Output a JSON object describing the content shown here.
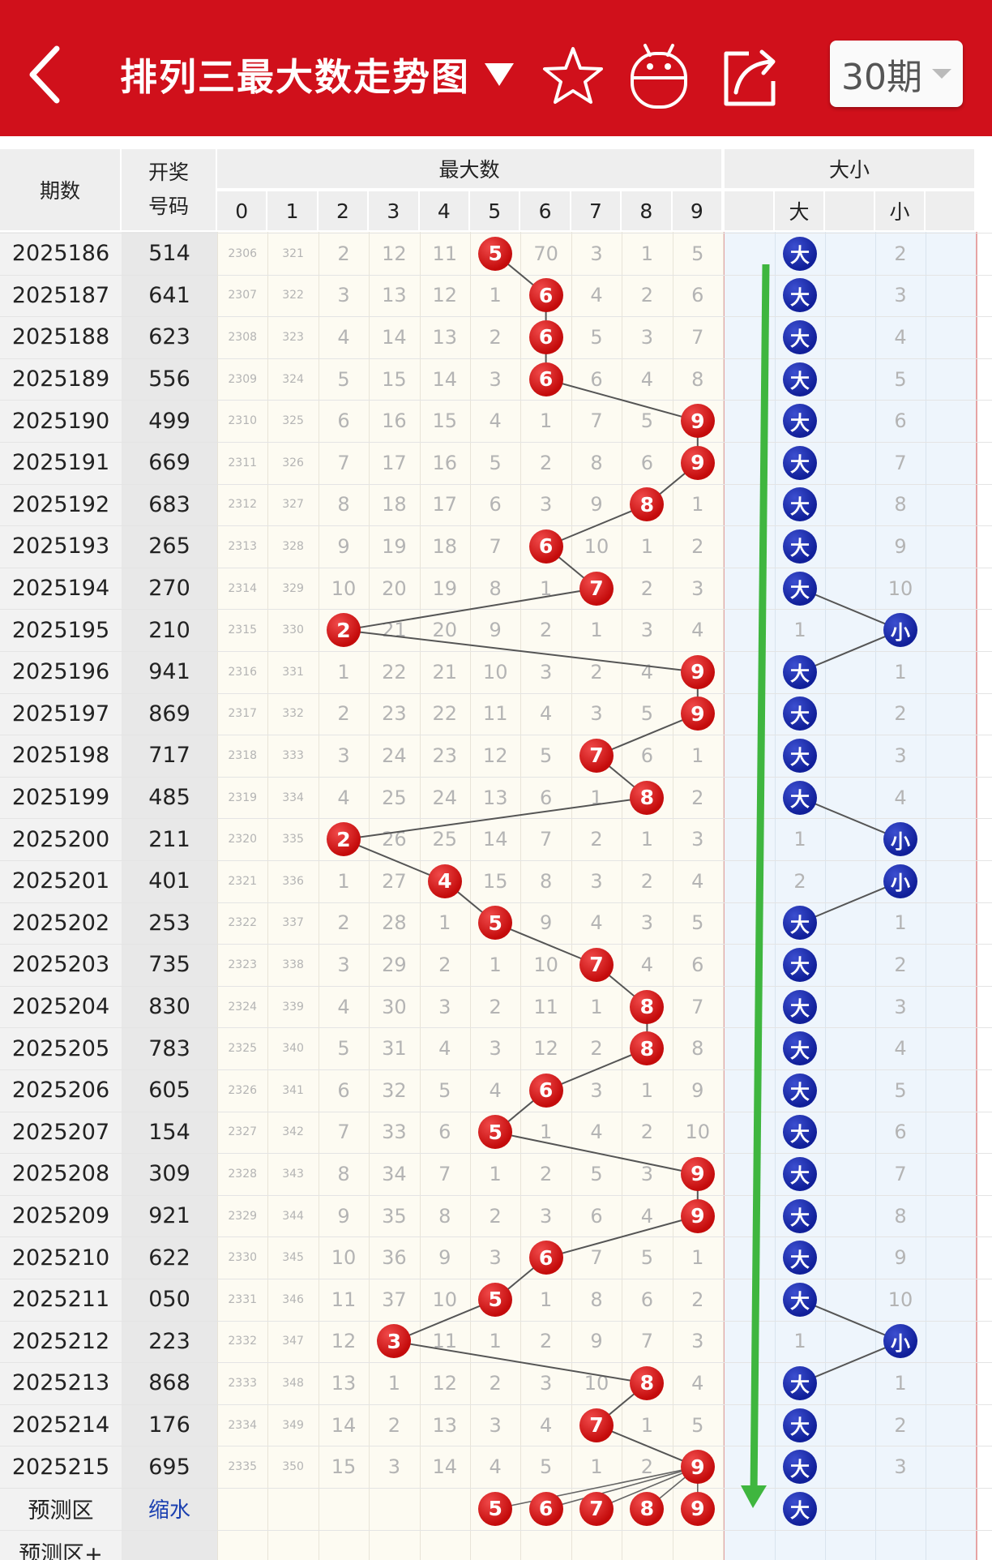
{
  "header": {
    "title": "排列三最大数走势图",
    "period_label": "30期",
    "icons": [
      "back-arrow-icon",
      "star-icon",
      "robot-icon",
      "share-icon"
    ],
    "bg_color": "#d0101b"
  },
  "columns": {
    "issue_label": "期数",
    "draw_label_1": "开奖",
    "draw_label_2": "号码",
    "max_group_label": "最大数",
    "digits": [
      "0",
      "1",
      "2",
      "3",
      "4",
      "5",
      "6",
      "7",
      "8",
      "9"
    ],
    "size_group_label": "大小",
    "big_label": "大",
    "small_label": "小"
  },
  "rows": [
    {
      "issue": "2025186",
      "draw": "514",
      "max": 5,
      "miss": [
        "2306",
        "321",
        "2",
        "12",
        "11",
        "",
        "70",
        "3",
        "1",
        "5"
      ],
      "size": "大",
      "big_miss": "",
      "small_miss": "2"
    },
    {
      "issue": "2025187",
      "draw": "641",
      "max": 6,
      "miss": [
        "2307",
        "322",
        "3",
        "13",
        "12",
        "1",
        "",
        "4",
        "2",
        "6"
      ],
      "size": "大",
      "big_miss": "",
      "small_miss": "3"
    },
    {
      "issue": "2025188",
      "draw": "623",
      "max": 6,
      "miss": [
        "2308",
        "323",
        "4",
        "14",
        "13",
        "2",
        "",
        "5",
        "3",
        "7"
      ],
      "size": "大",
      "big_miss": "",
      "small_miss": "4"
    },
    {
      "issue": "2025189",
      "draw": "556",
      "max": 6,
      "miss": [
        "2309",
        "324",
        "5",
        "15",
        "14",
        "3",
        "",
        "6",
        "4",
        "8"
      ],
      "size": "大",
      "big_miss": "",
      "small_miss": "5"
    },
    {
      "issue": "2025190",
      "draw": "499",
      "max": 9,
      "miss": [
        "2310",
        "325",
        "6",
        "16",
        "15",
        "4",
        "1",
        "7",
        "5",
        ""
      ],
      "size": "大",
      "big_miss": "",
      "small_miss": "6"
    },
    {
      "issue": "2025191",
      "draw": "669",
      "max": 9,
      "miss": [
        "2311",
        "326",
        "7",
        "17",
        "16",
        "5",
        "2",
        "8",
        "6",
        ""
      ],
      "size": "大",
      "big_miss": "",
      "small_miss": "7"
    },
    {
      "issue": "2025192",
      "draw": "683",
      "max": 8,
      "miss": [
        "2312",
        "327",
        "8",
        "18",
        "17",
        "6",
        "3",
        "9",
        "",
        "1"
      ],
      "size": "大",
      "big_miss": "",
      "small_miss": "8"
    },
    {
      "issue": "2025193",
      "draw": "265",
      "max": 6,
      "miss": [
        "2313",
        "328",
        "9",
        "19",
        "18",
        "7",
        "",
        "10",
        "1",
        "2"
      ],
      "size": "大",
      "big_miss": "",
      "small_miss": "9"
    },
    {
      "issue": "2025194",
      "draw": "270",
      "max": 7,
      "miss": [
        "2314",
        "329",
        "10",
        "20",
        "19",
        "8",
        "1",
        "",
        "2",
        "3"
      ],
      "size": "大",
      "big_miss": "",
      "small_miss": "10"
    },
    {
      "issue": "2025195",
      "draw": "210",
      "max": 2,
      "miss": [
        "2315",
        "330",
        "",
        "21",
        "20",
        "9",
        "2",
        "1",
        "3",
        "4"
      ],
      "size": "小",
      "big_miss": "1",
      "small_miss": ""
    },
    {
      "issue": "2025196",
      "draw": "941",
      "max": 9,
      "miss": [
        "2316",
        "331",
        "1",
        "22",
        "21",
        "10",
        "3",
        "2",
        "4",
        ""
      ],
      "size": "大",
      "big_miss": "",
      "small_miss": "1"
    },
    {
      "issue": "2025197",
      "draw": "869",
      "max": 9,
      "miss": [
        "2317",
        "332",
        "2",
        "23",
        "22",
        "11",
        "4",
        "3",
        "5",
        ""
      ],
      "size": "大",
      "big_miss": "",
      "small_miss": "2"
    },
    {
      "issue": "2025198",
      "draw": "717",
      "max": 7,
      "miss": [
        "2318",
        "333",
        "3",
        "24",
        "23",
        "12",
        "5",
        "",
        "6",
        "1"
      ],
      "size": "大",
      "big_miss": "",
      "small_miss": "3"
    },
    {
      "issue": "2025199",
      "draw": "485",
      "max": 8,
      "miss": [
        "2319",
        "334",
        "4",
        "25",
        "24",
        "13",
        "6",
        "1",
        "",
        "2"
      ],
      "size": "大",
      "big_miss": "",
      "small_miss": "4"
    },
    {
      "issue": "2025200",
      "draw": "211",
      "max": 2,
      "miss": [
        "2320",
        "335",
        "",
        "26",
        "25",
        "14",
        "7",
        "2",
        "1",
        "3"
      ],
      "size": "小",
      "big_miss": "1",
      "small_miss": ""
    },
    {
      "issue": "2025201",
      "draw": "401",
      "max": 4,
      "miss": [
        "2321",
        "336",
        "1",
        "27",
        "",
        "15",
        "8",
        "3",
        "2",
        "4"
      ],
      "size": "小",
      "big_miss": "2",
      "small_miss": ""
    },
    {
      "issue": "2025202",
      "draw": "253",
      "max": 5,
      "miss": [
        "2322",
        "337",
        "2",
        "28",
        "1",
        "",
        "9",
        "4",
        "3",
        "5"
      ],
      "size": "大",
      "big_miss": "",
      "small_miss": "1"
    },
    {
      "issue": "2025203",
      "draw": "735",
      "max": 7,
      "miss": [
        "2323",
        "338",
        "3",
        "29",
        "2",
        "1",
        "10",
        "",
        "4",
        "6"
      ],
      "size": "大",
      "big_miss": "",
      "small_miss": "2"
    },
    {
      "issue": "2025204",
      "draw": "830",
      "max": 8,
      "miss": [
        "2324",
        "339",
        "4",
        "30",
        "3",
        "2",
        "11",
        "1",
        "",
        "7"
      ],
      "size": "大",
      "big_miss": "",
      "small_miss": "3"
    },
    {
      "issue": "2025205",
      "draw": "783",
      "max": 8,
      "miss": [
        "2325",
        "340",
        "5",
        "31",
        "4",
        "3",
        "12",
        "2",
        "",
        "8"
      ],
      "size": "大",
      "big_miss": "",
      "small_miss": "4"
    },
    {
      "issue": "2025206",
      "draw": "605",
      "max": 6,
      "miss": [
        "2326",
        "341",
        "6",
        "32",
        "5",
        "4",
        "",
        "3",
        "1",
        "9"
      ],
      "size": "大",
      "big_miss": "",
      "small_miss": "5"
    },
    {
      "issue": "2025207",
      "draw": "154",
      "max": 5,
      "miss": [
        "2327",
        "342",
        "7",
        "33",
        "6",
        "",
        "1",
        "4",
        "2",
        "10"
      ],
      "size": "大",
      "big_miss": "",
      "small_miss": "6"
    },
    {
      "issue": "2025208",
      "draw": "309",
      "max": 9,
      "miss": [
        "2328",
        "343",
        "8",
        "34",
        "7",
        "1",
        "2",
        "5",
        "3",
        ""
      ],
      "size": "大",
      "big_miss": "",
      "small_miss": "7"
    },
    {
      "issue": "2025209",
      "draw": "921",
      "max": 9,
      "miss": [
        "2329",
        "344",
        "9",
        "35",
        "8",
        "2",
        "3",
        "6",
        "4",
        ""
      ],
      "size": "大",
      "big_miss": "",
      "small_miss": "8"
    },
    {
      "issue": "2025210",
      "draw": "622",
      "max": 6,
      "miss": [
        "2330",
        "345",
        "10",
        "36",
        "9",
        "3",
        "",
        "7",
        "5",
        "1"
      ],
      "size": "大",
      "big_miss": "",
      "small_miss": "9"
    },
    {
      "issue": "2025211",
      "draw": "050",
      "max": 5,
      "miss": [
        "2331",
        "346",
        "11",
        "37",
        "10",
        "",
        "1",
        "8",
        "6",
        "2"
      ],
      "size": "大",
      "big_miss": "",
      "small_miss": "10"
    },
    {
      "issue": "2025212",
      "draw": "223",
      "max": 3,
      "miss": [
        "2332",
        "347",
        "12",
        "",
        "11",
        "1",
        "2",
        "9",
        "7",
        "3"
      ],
      "size": "小",
      "big_miss": "1",
      "small_miss": ""
    },
    {
      "issue": "2025213",
      "draw": "868",
      "max": 8,
      "miss": [
        "2333",
        "348",
        "13",
        "1",
        "12",
        "2",
        "3",
        "10",
        "",
        "4"
      ],
      "size": "大",
      "big_miss": "",
      "small_miss": "1"
    },
    {
      "issue": "2025214",
      "draw": "176",
      "max": 7,
      "miss": [
        "2334",
        "349",
        "14",
        "2",
        "13",
        "3",
        "4",
        "",
        "1",
        "5"
      ],
      "size": "大",
      "big_miss": "",
      "small_miss": "2"
    },
    {
      "issue": "2025215",
      "draw": "695",
      "max": 9,
      "miss": [
        "2335",
        "350",
        "15",
        "3",
        "14",
        "4",
        "5",
        "1",
        "2",
        ""
      ],
      "size": "大",
      "big_miss": "",
      "small_miss": "3"
    }
  ],
  "prediction": {
    "label": "预测区",
    "draw_label": "缩水",
    "balls": [
      "5",
      "6",
      "7",
      "8",
      "9"
    ],
    "size": "大"
  },
  "prediction_plus_label": "预测区+",
  "colors": {
    "red_ball": "#d01010",
    "blue_ball": "#14249e",
    "trend_arrow": "#3fb63f",
    "header_bg": "#eeeeee"
  }
}
